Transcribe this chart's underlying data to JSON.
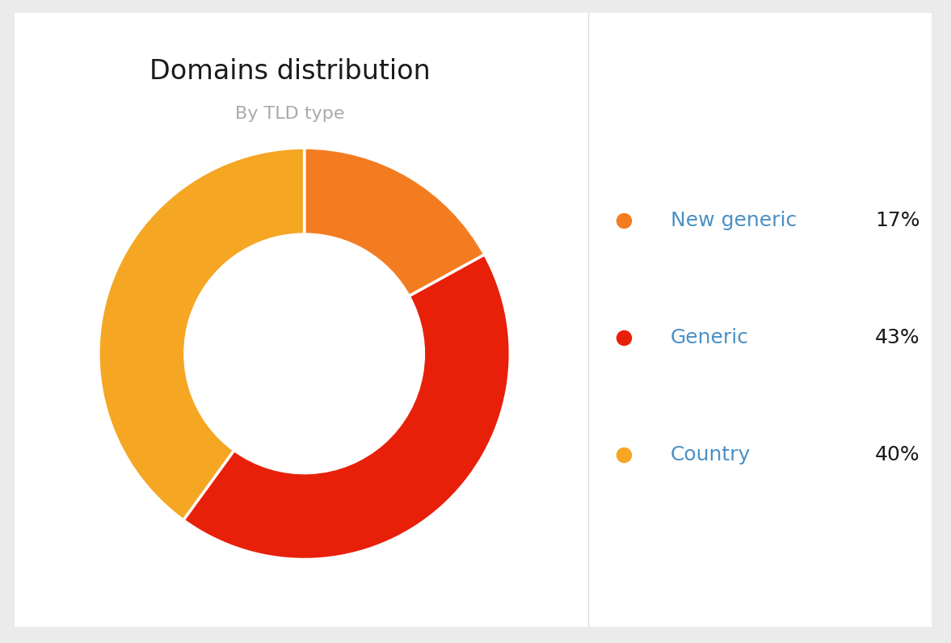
{
  "title": "Domains distribution",
  "subtitle": "By TLD type",
  "title_color": "#1a1a1a",
  "subtitle_color": "#aaaaaa",
  "background_color": "#ebebeb",
  "card_color": "#ffffff",
  "labels": [
    "New generic",
    "Generic",
    "Country"
  ],
  "values": [
    17,
    43,
    40
  ],
  "colors": [
    "#f47c20",
    "#e8200a",
    "#f5a623"
  ],
  "legend_label_color": "#4a90c4",
  "legend_pct_color": "#1a1a1a",
  "divider_color": "#dddddd"
}
